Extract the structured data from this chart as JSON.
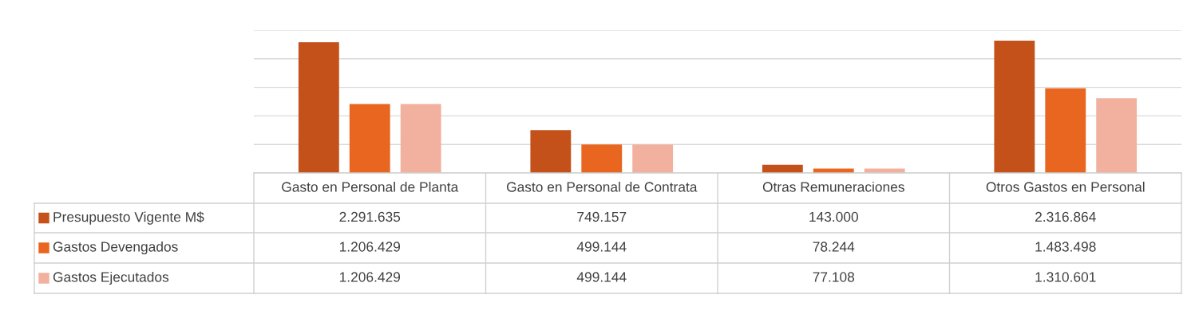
{
  "chart_data": {
    "type": "bar",
    "categories": [
      "Gasto en Personal de Planta",
      "Gasto en Personal de Contrata",
      "Otras Remuneraciones",
      "Otros Gastos en Personal"
    ],
    "series": [
      {
        "name": "Presupuesto Vigente M$",
        "color": "#c4501a",
        "values": [
          2291635,
          749157,
          143000,
          2316864
        ],
        "value_labels": [
          "2.291.635",
          "749.157",
          "143.000",
          "2.316.864"
        ]
      },
      {
        "name": "Gastos Devengados",
        "color": "#e8661f",
        "values": [
          1206429,
          499144,
          78244,
          1483498
        ],
        "value_labels": [
          "1.206.429",
          "499.144",
          "78.244",
          "1.483.498"
        ]
      },
      {
        "name": "Gastos Ejecutados",
        "color": "#f2b09e",
        "values": [
          1206429,
          499144,
          77108,
          1310601
        ],
        "value_labels": [
          "1.206.429",
          "499.144",
          "77.108",
          "1.310.601"
        ]
      }
    ],
    "ylim": [
      0,
      2500000
    ],
    "yticks": [
      {
        "value": 0,
        "label": null
      },
      {
        "value": 500000,
        "label": null
      },
      {
        "value": 1000000,
        "label": null
      },
      {
        "value": 1500000,
        "label": null
      },
      {
        "value": 2000000,
        "label": null
      },
      {
        "value": 2500000,
        "label": null
      }
    ],
    "grid": "y",
    "legend": "bottom left"
  }
}
